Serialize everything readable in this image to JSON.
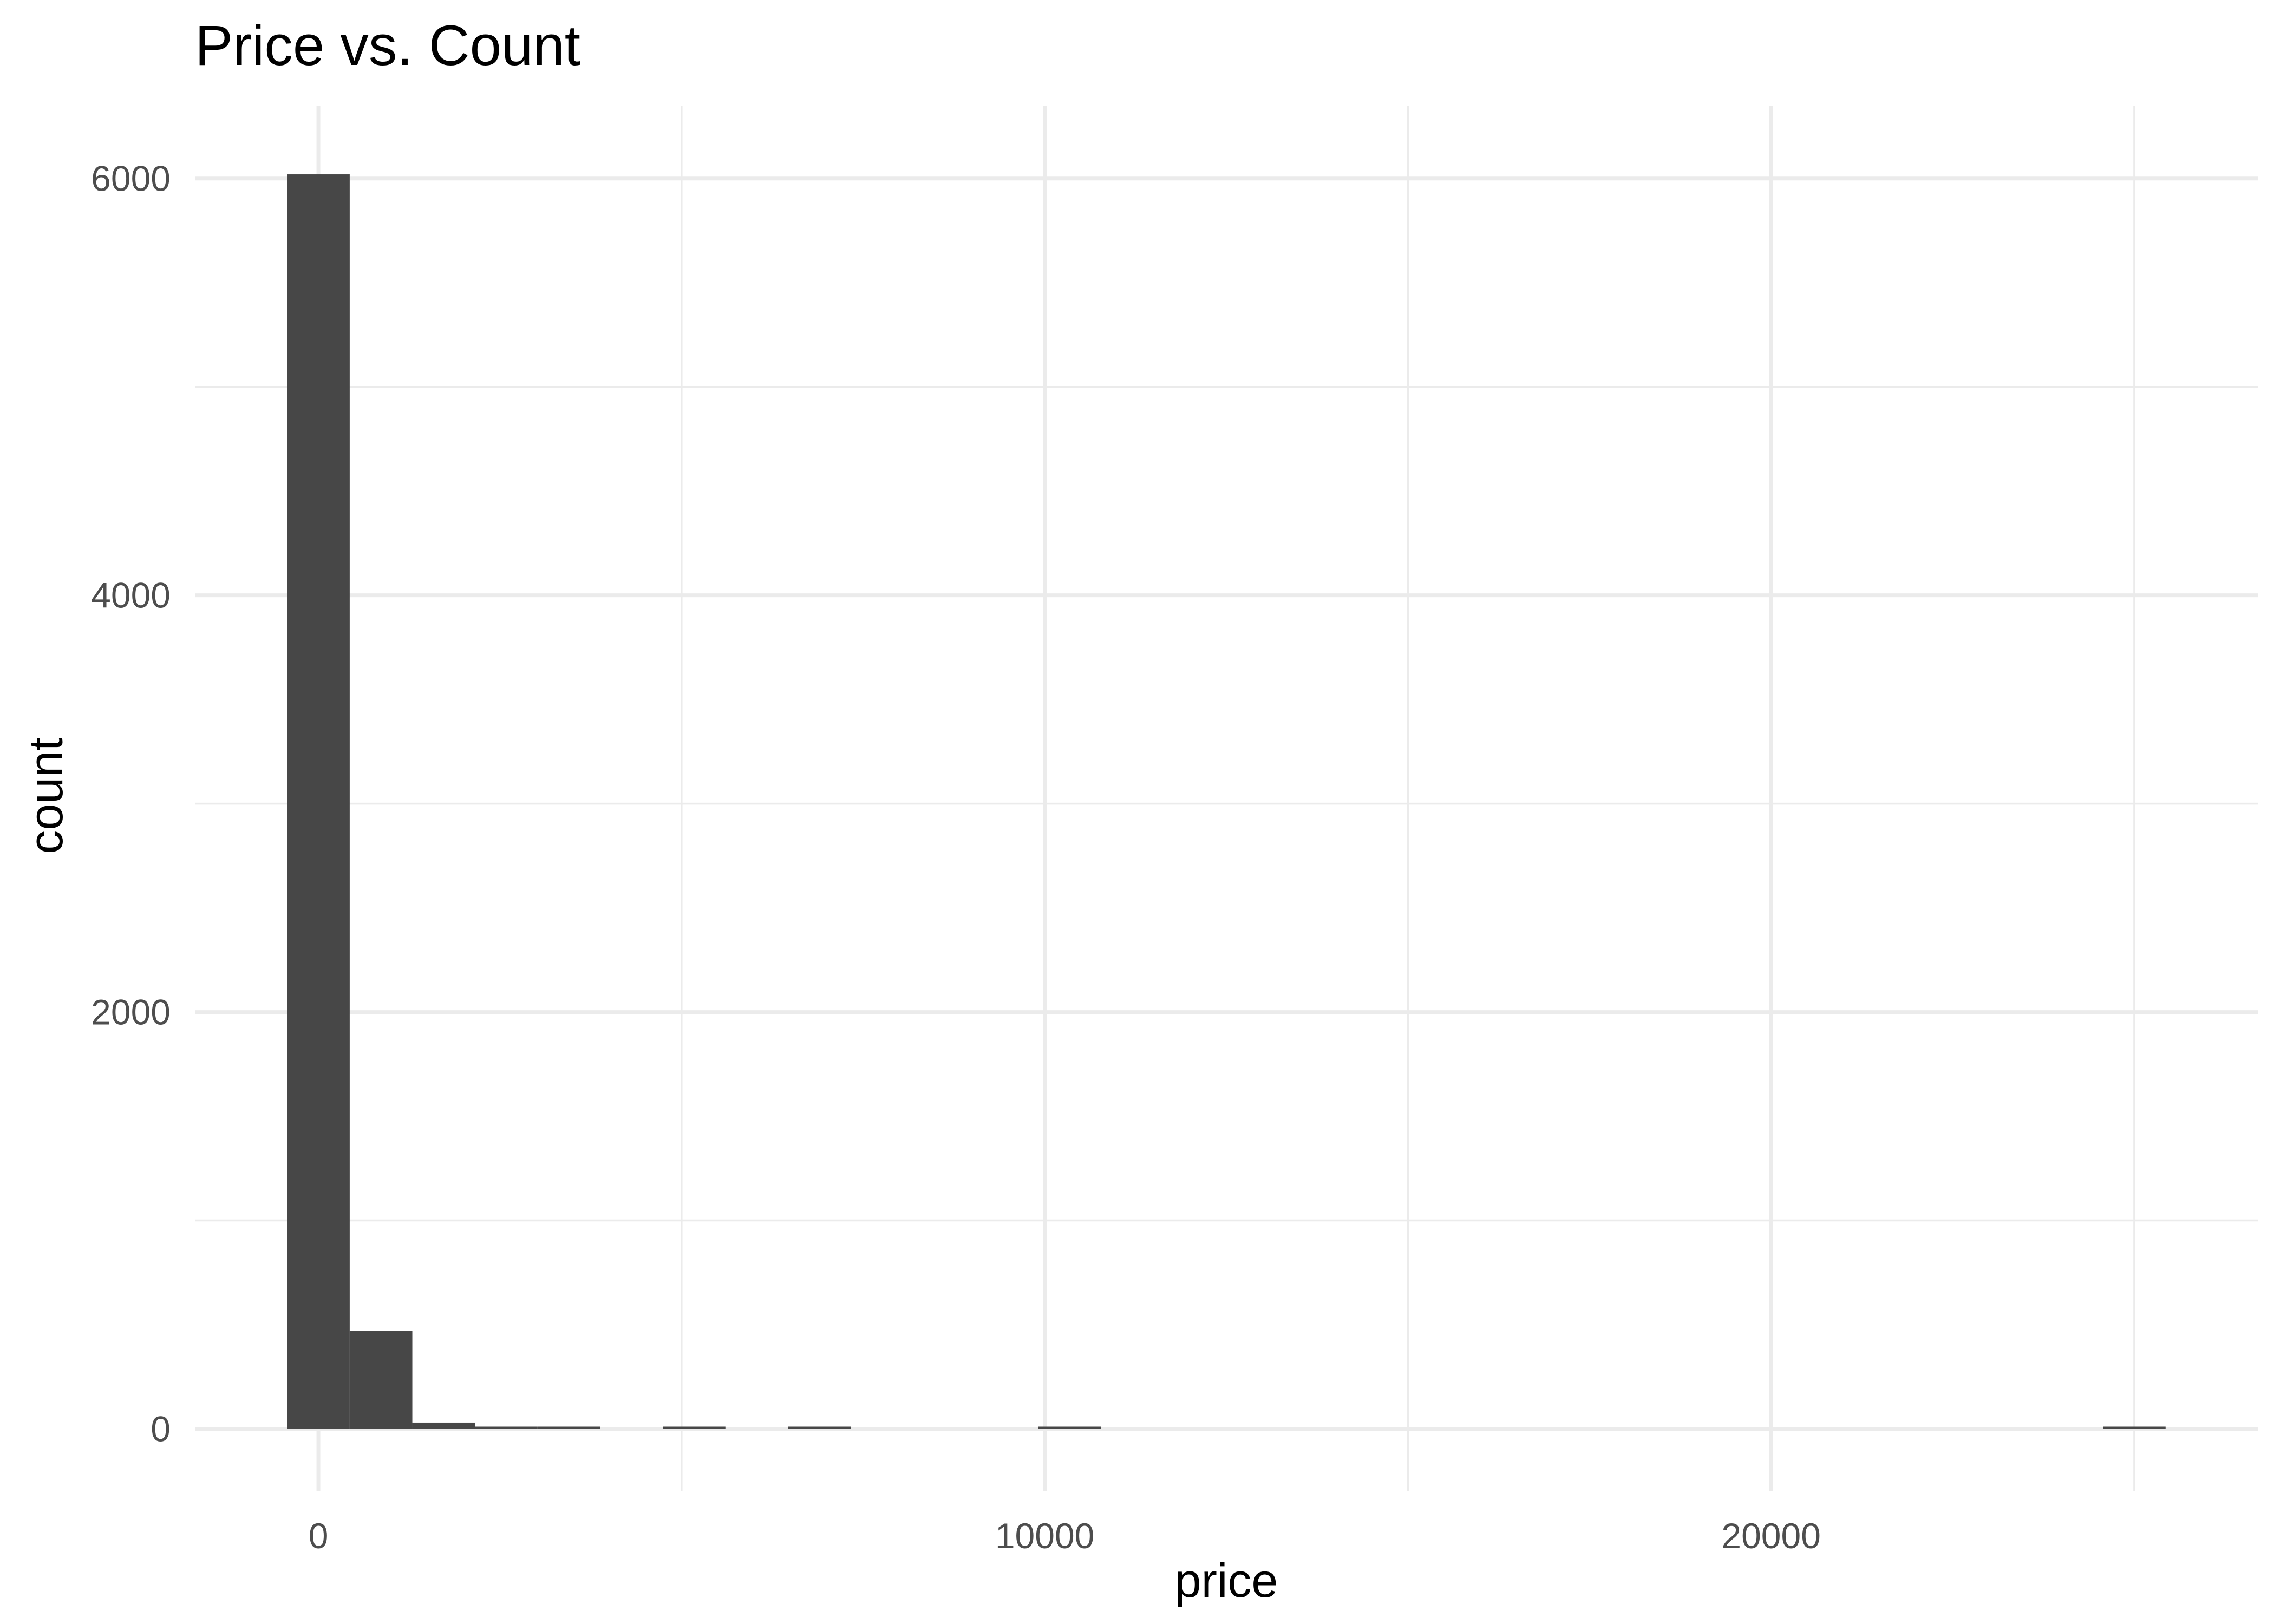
{
  "chart_data": {
    "type": "bar",
    "title": "Price vs. Count",
    "xlabel": "price",
    "ylabel": "count",
    "bin_width": 862,
    "bins": [
      {
        "x": 0,
        "count": 6020
      },
      {
        "x": 862,
        "count": 470
      },
      {
        "x": 1724,
        "count": 30
      },
      {
        "x": 2586,
        "count": 10
      },
      {
        "x": 3448,
        "count": 4
      },
      {
        "x": 5172,
        "count": 2
      },
      {
        "x": 6896,
        "count": 2
      },
      {
        "x": 10344,
        "count": 3
      },
      {
        "x": 25000,
        "count": 1
      }
    ],
    "xlim": [
      -1700,
      26700
    ],
    "ylim": [
      -300,
      6350
    ],
    "x_ticks": [
      0,
      10000,
      20000
    ],
    "x_tick_labels": [
      "0",
      "10000",
      "20000"
    ],
    "x_minor_ticks": [
      5000,
      15000,
      25000
    ],
    "y_ticks": [
      0,
      2000,
      4000,
      6000
    ],
    "y_tick_labels": [
      "0",
      "2000",
      "4000",
      "6000"
    ],
    "y_minor_ticks": [
      1000,
      3000,
      5000
    ],
    "grid": true,
    "colors": {
      "bar": "#474747",
      "grid": "#ebebeb",
      "background": "#ffffff"
    }
  }
}
